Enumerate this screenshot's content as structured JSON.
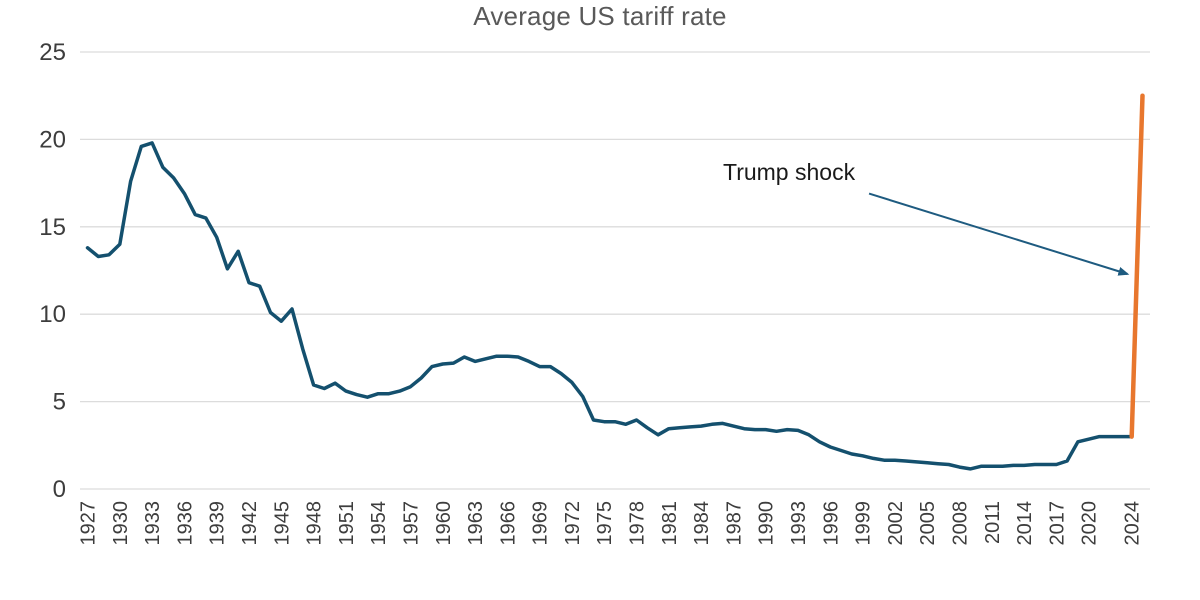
{
  "title": "Average US tariff rate",
  "colors": {
    "line": "#14506e",
    "spike": "#e8772e",
    "arrow": "#1e5b80",
    "grid": "#dcdcdc",
    "title_text": "#595959",
    "tick_text": "#3d3d3d",
    "annotation_text": "#1a1a1a",
    "background": "#ffffff"
  },
  "chart_data": {
    "type": "line",
    "title": "Average US tariff rate",
    "xlabel": "",
    "ylabel": "",
    "xlim": [
      1927,
      2025
    ],
    "ylim": [
      0,
      25
    ],
    "grid": true,
    "legend": "none",
    "yticks": [
      0,
      5,
      10,
      15,
      20,
      25
    ],
    "xtick_labels": [
      "1927",
      "1930",
      "1933",
      "1936",
      "1939",
      "1942",
      "1945",
      "1948",
      "1951",
      "1954",
      "1957",
      "1960",
      "1963",
      "1966",
      "1969",
      "1972",
      "1975",
      "1978",
      "1981",
      "1984",
      "1987",
      "1990",
      "1993",
      "1996",
      "1999",
      "2002",
      "2005",
      "2008",
      "2011",
      "2014",
      "2017",
      "2020",
      "2024"
    ],
    "series": [
      {
        "name": "Average US tariff rate",
        "color_key": "line",
        "width": 3.5,
        "x_start": 1927,
        "values": [
          13.8,
          13.3,
          13.4,
          14.0,
          17.6,
          19.6,
          19.8,
          18.4,
          17.8,
          16.9,
          15.7,
          15.5,
          14.4,
          12.6,
          13.6,
          11.8,
          11.6,
          10.1,
          9.6,
          10.3,
          8.0,
          5.95,
          5.75,
          6.05,
          5.6,
          5.4,
          5.25,
          5.45,
          5.45,
          5.6,
          5.85,
          6.35,
          7.0,
          7.15,
          7.2,
          7.55,
          7.3,
          7.45,
          7.6,
          7.6,
          7.55,
          7.3,
          7.0,
          7.0,
          6.6,
          6.1,
          5.3,
          3.95,
          3.85,
          3.85,
          3.7,
          3.95,
          3.5,
          3.1,
          3.45,
          3.5,
          3.55,
          3.6,
          3.7,
          3.75,
          3.6,
          3.45,
          3.4,
          3.4,
          3.3,
          3.4,
          3.35,
          3.1,
          2.7,
          2.4,
          2.2,
          2.0,
          1.9,
          1.75,
          1.65,
          1.65,
          1.6,
          1.55,
          1.5,
          1.45,
          1.4,
          1.25,
          1.15,
          1.3,
          1.3,
          1.3,
          1.35,
          1.35,
          1.4,
          1.4,
          1.4,
          1.6,
          2.7,
          2.85,
          3.0,
          3.0,
          3.0,
          3.0
        ]
      },
      {
        "name": "Trump shock spike",
        "color_key": "spike",
        "width": 4.5,
        "x": [
          2024,
          2025
        ],
        "values": [
          3.0,
          22.5
        ]
      }
    ],
    "annotation": {
      "text": "Trump shock",
      "arrow": {
        "from": {
          "year": 1999.6,
          "value": 16.9
        },
        "to": {
          "year": 2023.6,
          "value": 12.3
        }
      }
    }
  }
}
